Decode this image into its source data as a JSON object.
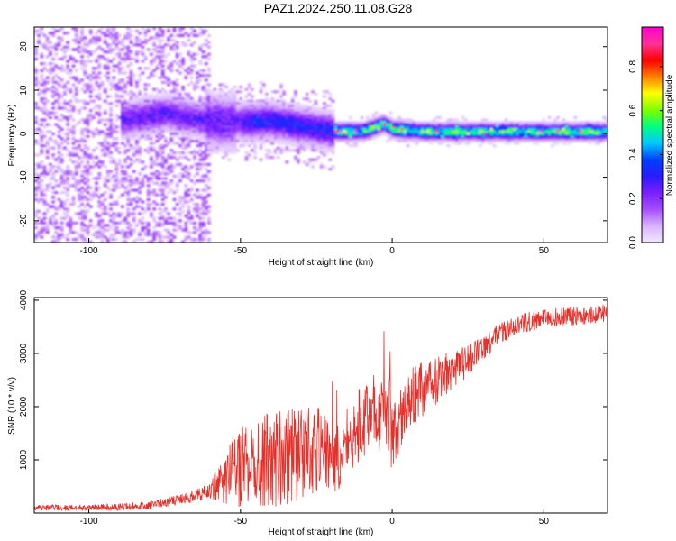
{
  "title": "PAZ1.2024.250.11.08.G28",
  "chart_data": [
    {
      "type": "heatmap",
      "xlabel": "Height of straight line (km)",
      "ylabel": "Frequency (Hz)",
      "xlim": [
        -118,
        71
      ],
      "ylim": [
        -25,
        24.5
      ],
      "xticks": [
        -100,
        -50,
        0,
        50
      ],
      "yticks": [
        -20,
        -10,
        0,
        10,
        20
      ],
      "colorbar": {
        "label": "Normalized spectral amplitude",
        "range": [
          0,
          0.98
        ],
        "ticks": [
          "0.0",
          "0.2",
          "0.4",
          "0.6",
          "0.8"
        ],
        "colormap": [
          "#f2e6ff",
          "#d9b3ff",
          "#a64dff",
          "#7a1fff",
          "#2a1bff",
          "#0040ff",
          "#00c8ff",
          "#00ff80",
          "#7fff00",
          "#ffff00",
          "#ff8000",
          "#ff0000",
          "#ff3399",
          "#ff00cc"
        ]
      },
      "ridge_centerline": [
        {
          "x": -88,
          "y": 3.5
        },
        {
          "x": -75,
          "y": 5.0
        },
        {
          "x": -60,
          "y": 3.0
        },
        {
          "x": -50,
          "y": 3.0
        },
        {
          "x": -40,
          "y": 3.2
        },
        {
          "x": -30,
          "y": 2.0
        },
        {
          "x": -20,
          "y": 0.8
        },
        {
          "x": -10,
          "y": 0.8
        },
        {
          "x": -3,
          "y": 2.5
        },
        {
          "x": 0,
          "y": 1.3
        },
        {
          "x": 10,
          "y": 0.7
        },
        {
          "x": 30,
          "y": 0.7
        },
        {
          "x": 50,
          "y": 0.7
        },
        {
          "x": 71,
          "y": 0.7
        }
      ],
      "grid": false
    },
    {
      "type": "line",
      "xlabel": "Height of straight line (km)",
      "ylabel": "SNR (10 * v/v)",
      "xlim": [
        -118,
        71
      ],
      "ylim": [
        0,
        4050
      ],
      "xticks": [
        -100,
        -50,
        0,
        50
      ],
      "yticks": [
        1000,
        2000,
        3000,
        4000
      ],
      "line_color": "#e8302a",
      "envelope": {
        "x": [
          -118,
          -100,
          -90,
          -80,
          -70,
          -60,
          -55,
          -50,
          -45,
          -40,
          -35,
          -30,
          -25,
          -20,
          -17,
          -15,
          -10,
          -5,
          0,
          5,
          10,
          15,
          20,
          25,
          30,
          35,
          40,
          45,
          50,
          55,
          60,
          65,
          71
        ],
        "mean": [
          100,
          100,
          110,
          150,
          250,
          420,
          700,
          850,
          950,
          1000,
          1050,
          1100,
          1200,
          1050,
          900,
          1400,
          1700,
          1900,
          1400,
          2100,
          2300,
          2500,
          2700,
          2850,
          3100,
          3350,
          3500,
          3600,
          3650,
          3700,
          3700,
          3720,
          3780
        ],
        "amp": [
          50,
          60,
          70,
          80,
          100,
          150,
          550,
          750,
          800,
          900,
          900,
          900,
          800,
          700,
          500,
          650,
          700,
          750,
          600,
          650,
          550,
          450,
          350,
          300,
          250,
          200,
          180,
          180,
          180,
          180,
          180,
          180,
          180
        ]
      },
      "grid": false
    }
  ]
}
